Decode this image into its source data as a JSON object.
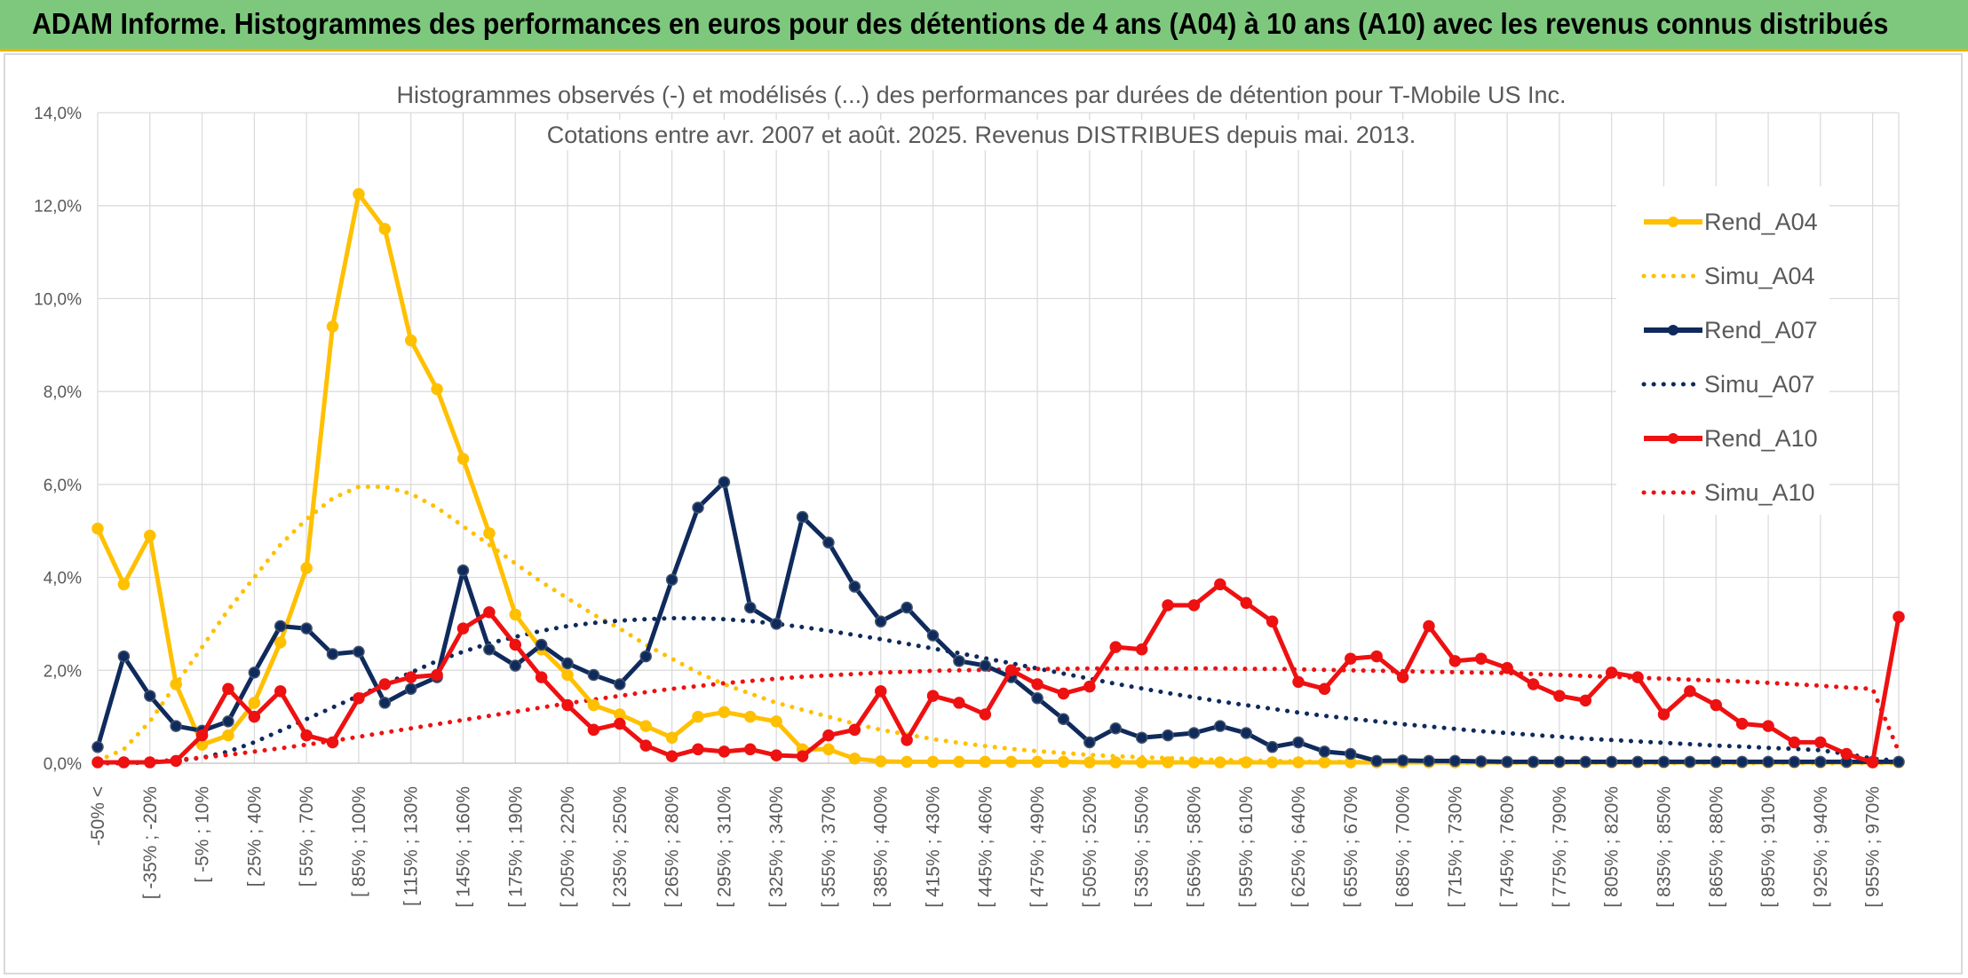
{
  "header": {
    "title": "ADAM Informe. Histogrammes des performances en euros pour des détentions de 4 ans (A04) à 10 ans (A10) avec les revenus connus distribués"
  },
  "chart_data": {
    "type": "line",
    "title_line1": "Histogrammes observés (-) et modélisés (...) des performances par durées de détention pour T-Mobile US Inc.",
    "title_line2": "Cotations entre avr. 2007 et août. 2025. Revenus DISTRIBUES depuis mai. 2013.",
    "ylim": [
      0,
      14
    ],
    "yticks": [
      "0,0%",
      "2,0%",
      "4,0%",
      "6,0%",
      "8,0%",
      "10,0%",
      "12,0%",
      "14,0%"
    ],
    "grid": true,
    "legend_position": "right",
    "xtick_labels": [
      "-50% <",
      "[ -35% ; -20%",
      "[ -5% ; 10%",
      "[ 25% ; 40%",
      "[ 55% ; 70%",
      "[ 85% ; 100%",
      "[ 115% ; 130%",
      "[ 145% ; 160%",
      "[ 175% ; 190%",
      "[ 205% ; 220%",
      "[ 235% ; 250%",
      "[ 265% ; 280%",
      "[ 295% ; 310%",
      "[ 325% ; 340%",
      "[ 355% ; 370%",
      "[ 385% ; 400%",
      "[ 415% ; 430%",
      "[ 445% ; 460%",
      "[ 475% ; 490%",
      "[ 505% ; 520%",
      "[ 535% ; 550%",
      "[ 565% ; 580%",
      "[ 595% ; 610%",
      "[ 625% ; 640%",
      "[ 655% ; 670%",
      "[ 685% ; 700%",
      "[ 715% ; 730%",
      "[ 745% ; 760%",
      "[ 775% ; 790%",
      "[ 805% ; 820%",
      "[ 835% ; 850%",
      "[ 865% ; 880%",
      "[ 895% ; 910%",
      "[ 925% ; 940%",
      "[ 955% ; 970%"
    ],
    "series": [
      {
        "name": "Rend_A04",
        "color": "#ffc000",
        "style": "solid",
        "markers": true,
        "values": [
          5.05,
          3.85,
          4.9,
          1.7,
          0.4,
          0.6,
          1.3,
          2.6,
          4.2,
          9.4,
          12.25,
          11.5,
          9.1,
          8.05,
          6.55,
          4.95,
          3.2,
          2.45,
          1.9,
          1.25,
          1.05,
          0.8,
          0.55,
          1.0,
          1.1,
          1.0,
          0.9,
          0.3,
          0.3,
          0.1,
          0.04,
          0.03,
          0.03,
          0.03,
          0.03,
          0.03,
          0.03,
          0.03,
          0.02,
          0.02,
          0.02,
          0.02,
          0.02,
          0.02,
          0.02,
          0.02,
          0.02,
          0.02,
          0.02,
          0.02,
          0.02,
          0.02,
          0.02,
          0.02,
          0.02,
          0.02,
          0.02,
          0.02,
          0.02,
          0.02,
          0.02,
          0.02,
          0.02,
          0.02,
          0.02,
          0.02,
          0.02,
          0.02,
          0.02,
          0.02
        ]
      },
      {
        "name": "Simu_A04",
        "color": "#ffc000",
        "style": "dotted",
        "markers": false,
        "values": [
          0.05,
          0.3,
          0.9,
          1.7,
          2.5,
          3.3,
          4.0,
          4.7,
          5.25,
          5.7,
          5.95,
          5.95,
          5.8,
          5.5,
          5.1,
          4.7,
          4.3,
          3.9,
          3.55,
          3.2,
          2.9,
          2.55,
          2.25,
          1.95,
          1.7,
          1.5,
          1.3,
          1.15,
          1.0,
          0.85,
          0.72,
          0.62,
          0.52,
          0.44,
          0.37,
          0.31,
          0.26,
          0.22,
          0.18,
          0.15,
          0.13,
          0.11,
          0.09,
          0.07,
          0.06,
          0.05,
          0.04,
          0.03,
          0.03,
          0.02,
          0.02,
          0.02,
          0.01,
          0.01,
          0.01,
          0.01,
          0.01,
          0.01,
          0.01,
          0.0,
          0.0,
          0.0,
          0.0,
          0.0,
          0.0,
          0.0,
          0.0,
          0.0,
          0.0,
          0.0
        ]
      },
      {
        "name": "Rend_A07",
        "color": "#0f2a5c",
        "style": "solid",
        "markers": true,
        "values": [
          0.35,
          2.3,
          1.45,
          0.8,
          0.7,
          0.9,
          1.95,
          2.95,
          2.9,
          2.35,
          2.4,
          1.3,
          1.6,
          1.85,
          4.15,
          2.45,
          2.1,
          2.55,
          2.15,
          1.9,
          1.7,
          2.3,
          3.95,
          5.5,
          6.05,
          3.35,
          3.0,
          5.3,
          4.75,
          3.8,
          3.05,
          3.35,
          2.75,
          2.2,
          2.1,
          1.85,
          1.4,
          0.95,
          0.45,
          0.75,
          0.55,
          0.6,
          0.65,
          0.8,
          0.65,
          0.35,
          0.45,
          0.25,
          0.2,
          0.05,
          0.06,
          0.05,
          0.05,
          0.04,
          0.03,
          0.03,
          0.03,
          0.03,
          0.03,
          0.03,
          0.03,
          0.03,
          0.03,
          0.03,
          0.03,
          0.03,
          0.03,
          0.03,
          0.03,
          0.03
        ]
      },
      {
        "name": "Simu_A07",
        "color": "#0f2a5c",
        "style": "dotted",
        "markers": false,
        "values": [
          0.0,
          0.0,
          0.02,
          0.05,
          0.12,
          0.25,
          0.45,
          0.7,
          0.95,
          1.2,
          1.45,
          1.7,
          1.95,
          2.2,
          2.4,
          2.58,
          2.72,
          2.85,
          2.95,
          3.02,
          3.07,
          3.1,
          3.12,
          3.12,
          3.1,
          3.06,
          3.0,
          2.93,
          2.85,
          2.76,
          2.67,
          2.57,
          2.47,
          2.37,
          2.26,
          2.15,
          2.04,
          1.93,
          1.82,
          1.71,
          1.61,
          1.51,
          1.42,
          1.33,
          1.25,
          1.17,
          1.09,
          1.02,
          0.96,
          0.9,
          0.84,
          0.79,
          0.74,
          0.69,
          0.65,
          0.61,
          0.57,
          0.53,
          0.5,
          0.47,
          0.44,
          0.41,
          0.38,
          0.36,
          0.33,
          0.31,
          0.28,
          0.2,
          0.1,
          0.05
        ]
      },
      {
        "name": "Rend_A10",
        "color": "#ee1111",
        "style": "solid",
        "markers": true,
        "values": [
          0.02,
          0.02,
          0.02,
          0.05,
          0.6,
          1.6,
          1.0,
          1.55,
          0.6,
          0.45,
          1.4,
          1.7,
          1.85,
          1.9,
          2.9,
          3.25,
          2.55,
          1.85,
          1.25,
          0.72,
          0.85,
          0.38,
          0.15,
          0.3,
          0.25,
          0.3,
          0.17,
          0.15,
          0.6,
          0.72,
          1.55,
          0.5,
          1.45,
          1.3,
          1.05,
          2.0,
          1.7,
          1.5,
          1.65,
          2.5,
          2.45,
          3.4,
          3.4,
          3.85,
          3.45,
          3.05,
          1.75,
          1.6,
          2.25,
          2.3,
          1.85,
          2.95,
          2.2,
          2.25,
          2.05,
          1.7,
          1.45,
          1.35,
          1.95,
          1.85,
          1.05,
          1.55,
          1.25,
          0.85,
          0.8,
          0.45,
          0.45,
          0.2,
          0.02,
          3.15
        ]
      },
      {
        "name": "Simu_A10",
        "color": "#ee1111",
        "style": "dotted",
        "markers": false,
        "values": [
          0.0,
          0.01,
          0.03,
          0.07,
          0.12,
          0.18,
          0.25,
          0.32,
          0.4,
          0.48,
          0.57,
          0.66,
          0.75,
          0.84,
          0.93,
          1.02,
          1.11,
          1.2,
          1.29,
          1.37,
          1.45,
          1.53,
          1.6,
          1.66,
          1.72,
          1.77,
          1.82,
          1.86,
          1.89,
          1.92,
          1.95,
          1.97,
          1.99,
          2.0,
          2.01,
          2.02,
          2.03,
          2.03,
          2.04,
          2.04,
          2.04,
          2.04,
          2.04,
          2.04,
          2.03,
          2.03,
          2.02,
          2.01,
          2.0,
          1.99,
          1.98,
          1.97,
          1.96,
          1.95,
          1.94,
          1.92,
          1.9,
          1.88,
          1.86,
          1.84,
          1.82,
          1.8,
          1.78,
          1.76,
          1.73,
          1.7,
          1.67,
          1.63,
          1.6,
          0.25
        ]
      }
    ]
  }
}
